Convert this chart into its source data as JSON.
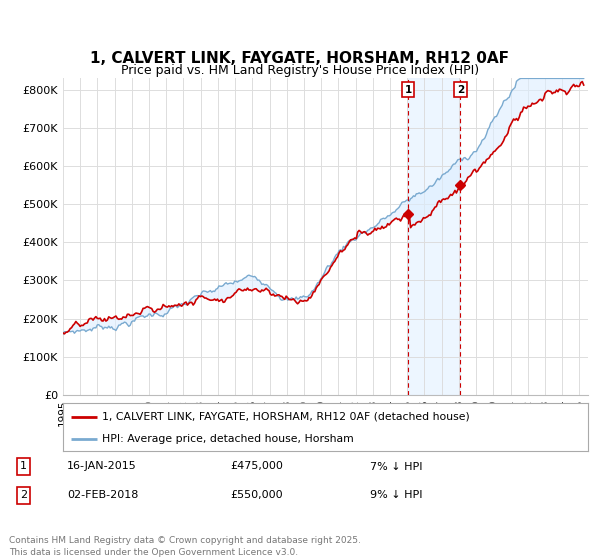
{
  "title": "1, CALVERT LINK, FAYGATE, HORSHAM, RH12 0AF",
  "subtitle": "Price paid vs. HM Land Registry's House Price Index (HPI)",
  "ylabel_ticks": [
    "£0",
    "£100K",
    "£200K",
    "£300K",
    "£400K",
    "£500K",
    "£600K",
    "£700K",
    "£800K"
  ],
  "ytick_values": [
    0,
    100000,
    200000,
    300000,
    400000,
    500000,
    600000,
    700000,
    800000
  ],
  "ylim": [
    0,
    830000
  ],
  "xlim_start": 1995.0,
  "xlim_end": 2025.5,
  "purchase1_x": 2015.04,
  "purchase1_y": 475000,
  "purchase2_x": 2018.09,
  "purchase2_y": 550000,
  "purchase1_date": "16-JAN-2015",
  "purchase1_price": "£475,000",
  "purchase1_hpi": "7% ↓ HPI",
  "purchase2_date": "02-FEB-2018",
  "purchase2_price": "£550,000",
  "purchase2_hpi": "9% ↓ HPI",
  "line_color_property": "#cc0000",
  "line_color_hpi": "#7aaad0",
  "fill_color": "#ddeeff",
  "legend_label_property": "1, CALVERT LINK, FAYGATE, HORSHAM, RH12 0AF (detached house)",
  "legend_label_hpi": "HPI: Average price, detached house, Horsham",
  "footnote": "Contains HM Land Registry data © Crown copyright and database right 2025.\nThis data is licensed under the Open Government Licence v3.0.",
  "background_color": "#ffffff",
  "grid_color": "#dddddd"
}
